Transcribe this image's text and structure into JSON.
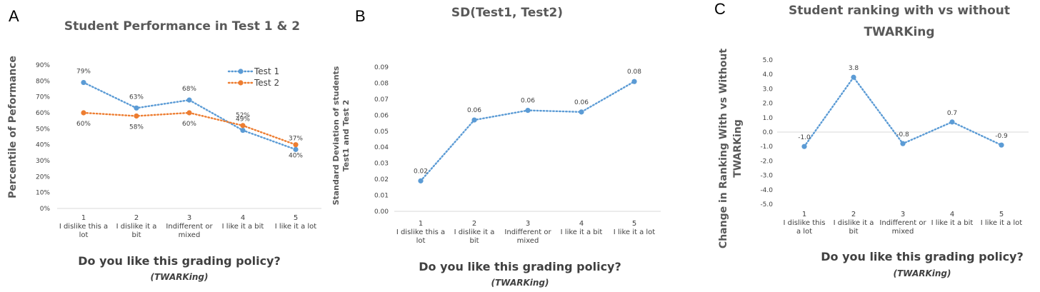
{
  "chart_data": [
    {
      "panel": "A",
      "type": "line",
      "title": "Student Performance in Test 1 & 2",
      "xlabel": "Do you like this grading policy?",
      "xsublabel": "(TWARKing)",
      "ylabel": "Percentile of Peformance",
      "categories": [
        "1",
        "2",
        "3",
        "4",
        "5"
      ],
      "category_descriptions": [
        "I dislike this a lot",
        "I dislike it a bit",
        "Indifferent or mixed",
        "I like it a bit",
        "I like it a lot"
      ],
      "ylim": [
        0,
        0.9
      ],
      "yticks": [
        "0%",
        "10%",
        "20%",
        "30%",
        "40%",
        "50%",
        "60%",
        "70%",
        "80%",
        "90%"
      ],
      "legend_position": "top-right",
      "series": [
        {
          "name": "Test 1",
          "values": [
            0.79,
            0.63,
            0.68,
            0.49,
            0.37
          ],
          "labels": [
            "79%",
            "63%",
            "68%",
            "49%",
            "37%"
          ],
          "label_position": "above",
          "color": "#5B9BD5"
        },
        {
          "name": "Test 2",
          "values": [
            0.6,
            0.58,
            0.6,
            0.52,
            0.4
          ],
          "labels": [
            "60%",
            "58%",
            "60%",
            "52%",
            "40%"
          ],
          "label_position": "below",
          "color": "#ED7D31"
        }
      ]
    },
    {
      "panel": "B",
      "type": "line",
      "title": "SD(Test1, Test2)",
      "xlabel": "Do you like this grading policy?",
      "xsublabel": "(TWARKing)",
      "ylabel": "Standard Deviation of students Test1 and Test 2",
      "categories": [
        "1",
        "2",
        "3",
        "4",
        "5"
      ],
      "category_descriptions": [
        "I dislike this a lot",
        "I dislike it a bit",
        "Indifferent or mixed",
        "I like it a bit",
        "I like it a lot"
      ],
      "ylim": [
        0,
        0.09
      ],
      "yticks": [
        "0.00",
        "0.01",
        "0.02",
        "0.03",
        "0.04",
        "0.05",
        "0.06",
        "0.07",
        "0.08",
        "0.09"
      ],
      "series": [
        {
          "values": [
            0.019,
            0.057,
            0.063,
            0.062,
            0.081
          ],
          "labels": [
            "0.02",
            "0.06",
            "0.06",
            "0.06",
            "0.08"
          ],
          "label_position": "above",
          "color": "#5B9BD5"
        }
      ]
    },
    {
      "panel": "C",
      "type": "line",
      "title": "Student ranking with vs without TWARKing",
      "xlabel": "Do you like this grading policy?",
      "xsublabel": "(TWARKing)",
      "ylabel": "Change in Ranking With vs Without TWARKing",
      "categories": [
        "1",
        "2",
        "3",
        "4",
        "5"
      ],
      "category_descriptions": [
        "I dislike this a lot",
        "I dislike it a bit",
        "Indifferent or mixed",
        "I like it a bit",
        "I like it a lot"
      ],
      "ylim": [
        -5,
        5
      ],
      "yticks": [
        "-5.0",
        "-4.0",
        "-3.0",
        "-2.0",
        "-1.0",
        "0.0",
        "1.0",
        "2.0",
        "3.0",
        "4.0",
        "5.0"
      ],
      "series": [
        {
          "values": [
            -1.0,
            3.8,
            -0.8,
            0.7,
            -0.9
          ],
          "labels": [
            "-1.0",
            "3.8",
            "-0.8",
            "0.7",
            "-0.9"
          ],
          "label_position": "above",
          "color": "#5B9BD5"
        }
      ]
    }
  ]
}
